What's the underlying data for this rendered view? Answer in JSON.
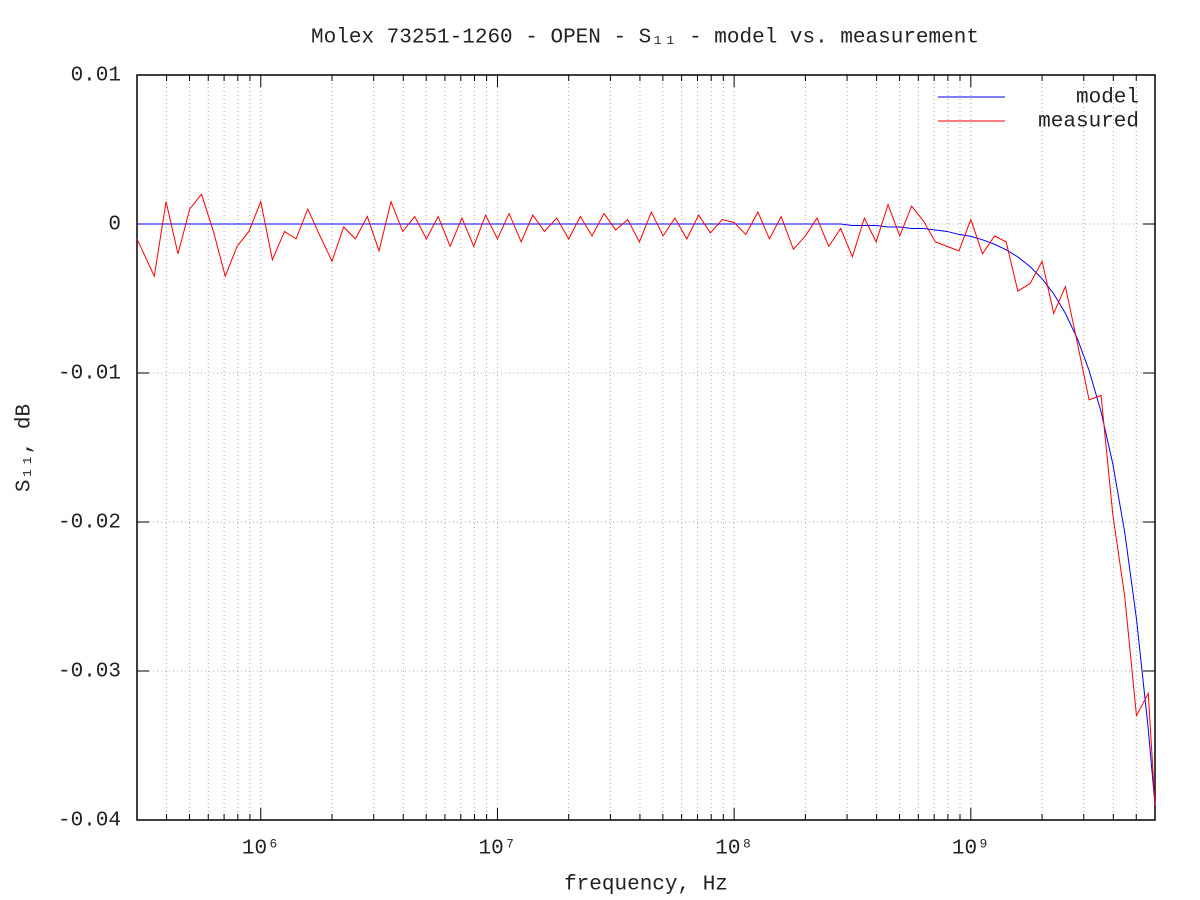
{
  "chart_data": {
    "type": "line",
    "title": "Molex 73251-1260 - OPEN - S₁₁ - model vs. measurement",
    "x_label": "frequency, Hz",
    "y_label": "S₁₁, dB",
    "x": [
      300000,
      355000,
      398000,
      447000,
      501000,
      562000,
      631000,
      708000,
      794000,
      891000,
      1000000,
      1120000,
      1260000,
      1410000,
      1580000,
      1780000,
      2000000,
      2240000,
      2510000,
      2820000,
      3160000,
      3550000,
      3980000,
      4470000,
      5010000,
      5620000,
      6310000,
      7080000,
      7940000,
      8910000,
      10000000,
      11200000,
      12600000,
      14100000,
      15800000,
      17800000,
      20000000,
      22400000,
      25100000,
      28200000,
      31600000,
      35500000,
      39800000,
      44700000,
      50100000,
      56200000,
      63100000,
      70800000,
      79400000,
      89100000,
      100000000,
      112000000,
      126000000,
      141000000,
      158000000,
      178000000,
      200000000,
      224000000,
      251000000,
      282000000,
      316000000,
      355000000,
      398000000,
      447000000,
      501000000,
      562000000,
      631000000,
      708000000,
      794000000,
      891000000,
      1000000000,
      1120000000,
      1260000000,
      1410000000,
      1580000000,
      1780000000,
      2000000000,
      2240000000,
      2510000000,
      2820000000,
      3160000000,
      3550000000,
      3980000000,
      4470000000,
      5010000000,
      5620000000,
      6000000000
    ],
    "series": [
      {
        "name": "model",
        "color": "#0000ff",
        "values": [
          0,
          0,
          0,
          0,
          0,
          0,
          0,
          0,
          0,
          0,
          0,
          0,
          0,
          0,
          0,
          0,
          0,
          0,
          0,
          0,
          0,
          0,
          0,
          0,
          0,
          0,
          0,
          0,
          0,
          0,
          0,
          0,
          0,
          0,
          0,
          0,
          0,
          0,
          0,
          0,
          0,
          0,
          0,
          0,
          0,
          0,
          0,
          0,
          0,
          0,
          0,
          0,
          0,
          0,
          0,
          0,
          0,
          0,
          0,
          0,
          -0.0001,
          -0.0001,
          -0.0001,
          -0.0002,
          -0.0002,
          -0.0003,
          -0.0003,
          -0.0004,
          -0.0005,
          -0.0007,
          -0.00083,
          -0.00106,
          -0.00136,
          -0.00173,
          -0.00221,
          -0.00286,
          -0.00367,
          -0.00469,
          -0.006,
          -0.0077,
          -0.00983,
          -0.0126,
          -0.0161,
          -0.0207,
          -0.0265,
          -0.0339,
          -0.039
        ]
      },
      {
        "name": "measured",
        "color": "#ff0000",
        "values": [
          -0.001,
          -0.0035,
          0.0015,
          -0.002,
          0.001,
          0.002,
          -0.0005,
          -0.0035,
          -0.0015,
          -0.0005,
          0.0015,
          -0.0024,
          -0.0005,
          -0.001,
          0.001,
          -0.0008,
          -0.0025,
          -0.0002,
          -0.001,
          0.0005,
          -0.0018,
          0.0015,
          -0.0005,
          0.0005,
          -0.001,
          0.0005,
          -0.0015,
          0.0004,
          -0.0015,
          0.0006,
          -0.001,
          0.0007,
          -0.0012,
          0.0006,
          -0.0005,
          0.0004,
          -0.001,
          0.0005,
          -0.0008,
          0.0007,
          -0.0004,
          0.0003,
          -0.0012,
          0.0008,
          -0.0008,
          0.0004,
          -0.001,
          0.0006,
          -0.0006,
          0.0003,
          0.0001,
          -0.0007,
          0.0008,
          -0.001,
          0.0005,
          -0.0017,
          -0.0008,
          0.0004,
          -0.0015,
          -0.0003,
          -0.0022,
          0.0004,
          -0.0012,
          0.0013,
          -0.0008,
          0.0012,
          0.0002,
          -0.0012,
          -0.0015,
          -0.0018,
          0.0003,
          -0.002,
          -0.0008,
          -0.0012,
          -0.0045,
          -0.004,
          -0.0025,
          -0.006,
          -0.0042,
          -0.008,
          -0.0118,
          -0.0115,
          -0.0195,
          -0.025,
          -0.033,
          -0.0315,
          -0.039
        ]
      }
    ],
    "xlim": [
      300000,
      6000000000
    ],
    "ylim": [
      -0.04,
      0.01
    ],
    "xlog": true,
    "xticks": [
      {
        "value": 1000000,
        "label": "10⁶"
      },
      {
        "value": 10000000,
        "label": "10⁷"
      },
      {
        "value": 100000000,
        "label": "10⁸"
      },
      {
        "value": 1000000000,
        "label": "10⁹"
      }
    ],
    "xminorticks": [
      400000,
      500000,
      600000,
      700000,
      800000,
      900000,
      2000000,
      3000000,
      4000000,
      5000000,
      6000000,
      7000000,
      8000000,
      9000000,
      20000000,
      30000000,
      40000000,
      50000000,
      60000000,
      70000000,
      80000000,
      90000000,
      200000000,
      300000000,
      400000000,
      500000000,
      600000000,
      700000000,
      800000000,
      900000000,
      2000000000,
      3000000000,
      4000000000,
      5000000000
    ],
    "yticks": [
      0.01,
      0,
      -0.01,
      -0.02,
      -0.03,
      -0.04
    ],
    "grid": true,
    "legend": "top-right"
  }
}
